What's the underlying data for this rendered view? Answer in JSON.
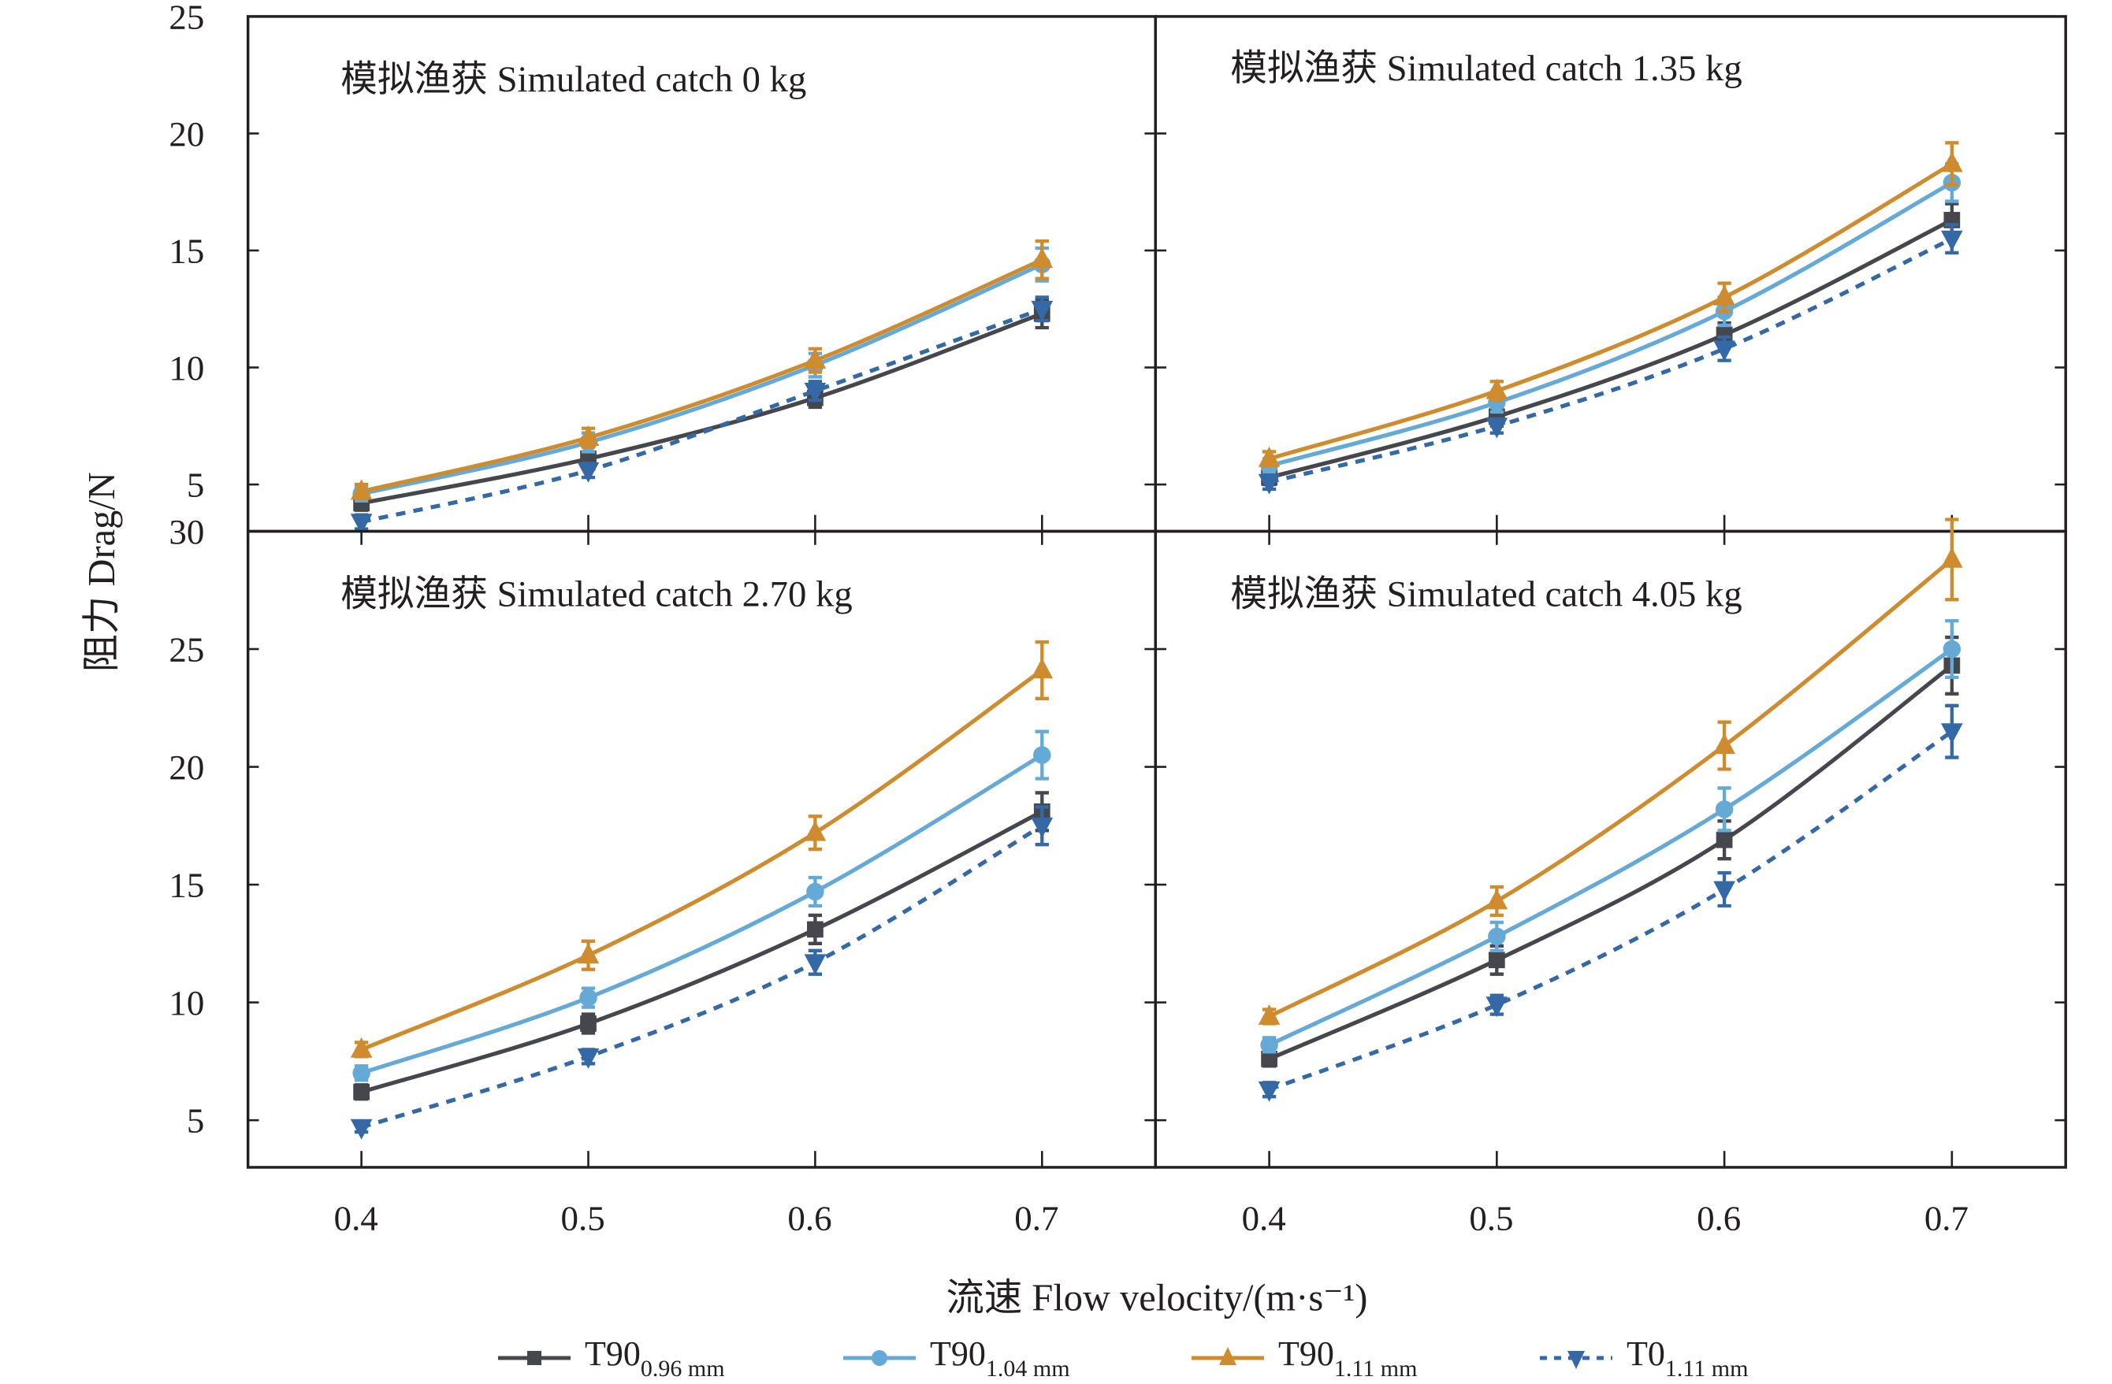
{
  "chart_data": {
    "type": "line",
    "ylabel": "阻力 Drag/N",
    "xlabel": "流速 Flow velocity/(m·s⁻¹)",
    "x": [
      0.4,
      0.5,
      0.6,
      0.7
    ],
    "x_tick_labels": [
      "0.4",
      "0.5",
      "0.6",
      "0.7"
    ],
    "xlim": [
      0.35,
      0.75
    ],
    "legend_placement": "bottom",
    "grid": false,
    "legend": [
      {
        "main": "T90",
        "sub": "0.96 mm",
        "color": "#45474d",
        "marker": "square",
        "dash": false
      },
      {
        "main": "T90",
        "sub": "1.04 mm",
        "color": "#65a9d6",
        "marker": "circle",
        "dash": false
      },
      {
        "main": "T90",
        "sub": "1.11 mm",
        "color": "#cf8c2e",
        "marker": "triangle-up",
        "dash": false
      },
      {
        "main": "T0",
        "sub": "1.11 mm",
        "color": "#3469a6",
        "marker": "triangle-down",
        "dash": true
      }
    ],
    "panels": [
      {
        "title": "模拟渔获 Simulated catch 0 kg",
        "ylim": [
          3,
          25
        ],
        "y_ticks": [
          "5",
          "10",
          "15",
          "20",
          "25"
        ],
        "series": [
          {
            "values": [
              4.2,
              6.1,
              8.7,
              12.3
            ],
            "err": [
              0.3,
              0.3,
              0.4,
              0.6
            ]
          },
          {
            "values": [
              4.6,
              6.8,
              10.1,
              14.4
            ],
            "err": [
              0.3,
              0.4,
              0.5,
              0.7
            ]
          },
          {
            "values": [
              4.7,
              7.0,
              10.3,
              14.6
            ],
            "err": [
              0.3,
              0.4,
              0.5,
              0.8
            ]
          },
          {
            "values": [
              3.4,
              5.6,
              9.0,
              12.5
            ],
            "err": [
              0.3,
              0.3,
              0.4,
              0.5
            ]
          }
        ]
      },
      {
        "title": "模拟渔获 Simulated catch 1.35 kg",
        "ylim": [
          3,
          25
        ],
        "y_ticks": [
          "5",
          "10",
          "15",
          "20",
          "25"
        ],
        "series": [
          {
            "values": [
              5.3,
              7.9,
              11.4,
              16.3
            ],
            "err": [
              0.3,
              0.4,
              0.5,
              0.7
            ]
          },
          {
            "values": [
              5.8,
              8.5,
              12.4,
              17.9
            ],
            "err": [
              0.3,
              0.4,
              0.6,
              0.8
            ]
          },
          {
            "values": [
              6.1,
              9.0,
              13.0,
              18.7
            ],
            "err": [
              0.3,
              0.4,
              0.6,
              0.9
            ]
          },
          {
            "values": [
              5.1,
              7.5,
              10.8,
              15.5
            ],
            "err": [
              0.3,
              0.3,
              0.5,
              0.6
            ]
          }
        ]
      },
      {
        "title": "模拟渔获 Simulated catch 2.70 kg",
        "ylim": [
          3,
          30
        ],
        "y_ticks": [
          "5",
          "10",
          "15",
          "20",
          "25",
          "30"
        ],
        "series": [
          {
            "values": [
              6.2,
              9.1,
              13.1,
              18.1
            ],
            "err": [
              0.3,
              0.4,
              0.6,
              0.8
            ]
          },
          {
            "values": [
              7.0,
              10.2,
              14.7,
              20.5
            ],
            "err": [
              0.3,
              0.4,
              0.6,
              1.0
            ]
          },
          {
            "values": [
              8.0,
              12.0,
              17.2,
              24.1
            ],
            "err": [
              0.3,
              0.6,
              0.7,
              1.2
            ]
          },
          {
            "values": [
              4.7,
              7.7,
              11.7,
              17.5
            ],
            "err": [
              0.2,
              0.3,
              0.5,
              0.8
            ]
          }
        ]
      },
      {
        "title": "模拟渔获 Simulated catch 4.05 kg",
        "ylim": [
          3,
          30
        ],
        "y_ticks": [
          "5",
          "10",
          "15",
          "20",
          "25",
          "30"
        ],
        "series": [
          {
            "values": [
              7.6,
              11.8,
              16.9,
              24.3
            ],
            "err": [
              0.3,
              0.6,
              0.8,
              1.2
            ]
          },
          {
            "values": [
              8.2,
              12.8,
              18.2,
              25.0
            ],
            "err": [
              0.3,
              0.6,
              0.9,
              1.2
            ]
          },
          {
            "values": [
              9.4,
              14.3,
              20.9,
              28.8
            ],
            "err": [
              0.3,
              0.6,
              1.0,
              1.7
            ]
          },
          {
            "values": [
              6.3,
              9.9,
              14.8,
              21.5
            ],
            "err": [
              0.3,
              0.4,
              0.7,
              1.1
            ]
          }
        ]
      }
    ]
  }
}
